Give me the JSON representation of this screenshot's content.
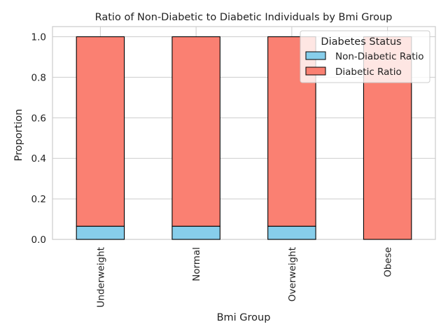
{
  "chart_data": {
    "type": "bar",
    "stacked": true,
    "title": "Ratio of Non-Diabetic to Diabetic Individuals by Bmi Group",
    "xlabel": "Bmi Group",
    "ylabel": "Proportion",
    "categories": [
      "Underweight",
      "Normal",
      "Overweight",
      "Obese"
    ],
    "series": [
      {
        "name": "Non-Diabetic Ratio",
        "values": [
          0.065,
          0.065,
          0.065,
          0.0
        ],
        "color": "#87CEEB"
      },
      {
        "name": "Diabetic Ratio",
        "values": [
          0.935,
          0.935,
          0.935,
          1.0
        ],
        "color": "#FA8072"
      }
    ],
    "ylim": [
      0,
      1.05
    ],
    "yticks": [
      0.0,
      0.2,
      0.4,
      0.6,
      0.8,
      1.0
    ],
    "ytick_labels": [
      "0.0",
      "0.2",
      "0.4",
      "0.6",
      "0.8",
      "1.0"
    ],
    "grid": true,
    "legend": {
      "title": "Diabetes Status",
      "placement": "top-right"
    },
    "edge_color": "#000000",
    "grid_color": "#cccccc",
    "spine_color": "#cccccc"
  }
}
